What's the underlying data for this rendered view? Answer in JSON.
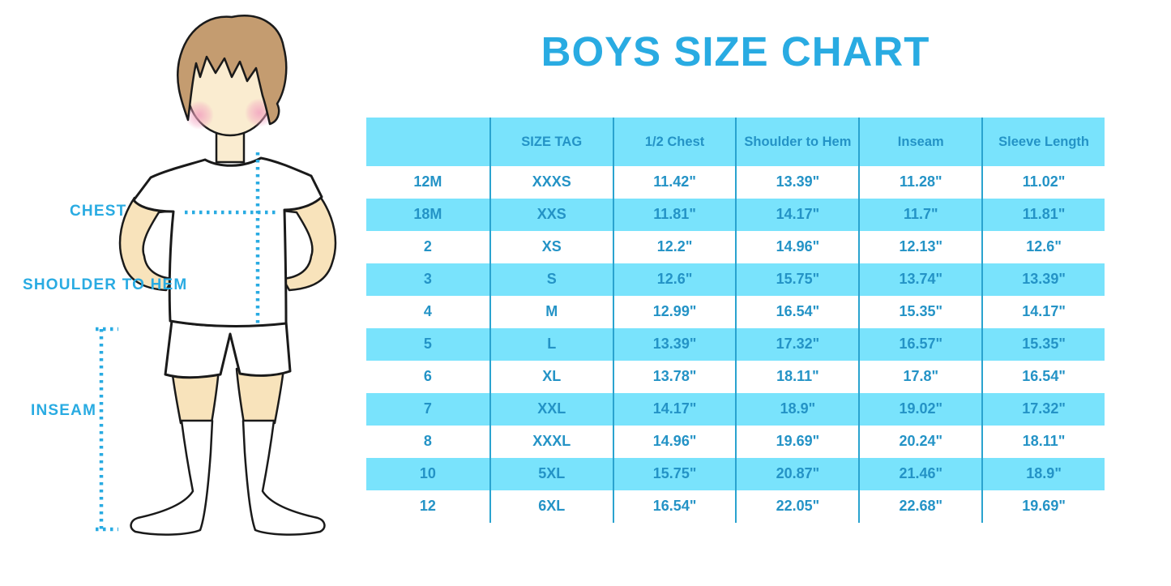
{
  "title": "BOYS SIZE CHART",
  "colors": {
    "accent": "#29ABE2",
    "band_blue": "#79E3FC",
    "table_text": "#2493C6",
    "divider_blue": "#2AA3CF",
    "skin": "#F8E3BB",
    "face": "#FAECD0",
    "hair": "#C49C70",
    "blush": "#F2A2C0"
  },
  "figure": {
    "labels": {
      "chest": "CHEST",
      "shoulder_to_hem": "SHOULDER TO HEM",
      "inseam": "INSEAM"
    }
  },
  "chart_data": {
    "type": "table",
    "title": "BOYS SIZE CHART",
    "columns": [
      "",
      "SIZE TAG",
      "1/2 Chest",
      "Shoulder to Hem",
      "Inseam",
      "Sleeve Length"
    ],
    "rows": [
      [
        "12M",
        "XXXS",
        "11.42\"",
        "13.39\"",
        "11.28\"",
        "11.02\""
      ],
      [
        "18M",
        "XXS",
        "11.81\"",
        "14.17\"",
        "11.7\"",
        "11.81\""
      ],
      [
        "2",
        "XS",
        "12.2\"",
        "14.96\"",
        "12.13\"",
        "12.6\""
      ],
      [
        "3",
        "S",
        "12.6\"",
        "15.75\"",
        "13.74\"",
        "13.39\""
      ],
      [
        "4",
        "M",
        "12.99\"",
        "16.54\"",
        "15.35\"",
        "14.17\""
      ],
      [
        "5",
        "L",
        "13.39\"",
        "17.32\"",
        "16.57\"",
        "15.35\""
      ],
      [
        "6",
        "XL",
        "13.78\"",
        "18.11\"",
        "17.8\"",
        "16.54\""
      ],
      [
        "7",
        "XXL",
        "14.17\"",
        "18.9\"",
        "19.02\"",
        "17.32\""
      ],
      [
        "8",
        "XXXL",
        "14.96\"",
        "19.69\"",
        "20.24\"",
        "18.11\""
      ],
      [
        "10",
        "5XL",
        "15.75\"",
        "20.87\"",
        "21.46\"",
        "18.9\""
      ],
      [
        "12",
        "6XL",
        "16.54\"",
        "22.05\"",
        "22.68\"",
        "19.69\""
      ]
    ]
  }
}
